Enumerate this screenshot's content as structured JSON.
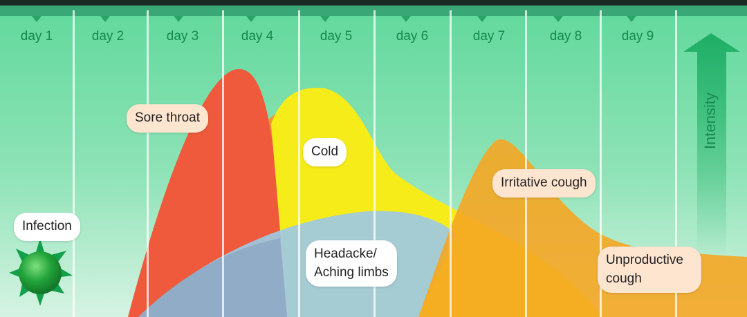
{
  "days": [
    "day 1",
    "day 2",
    "day 3",
    "day 4",
    "day 5",
    "day 6",
    "day 7",
    "day 8",
    "day 9"
  ],
  "axis_label": "Intensity",
  "labels": {
    "infection": "Infection",
    "sore_throat": "Sore throat",
    "cold": "Cold",
    "headache_line1": "Headacke/",
    "headache_line2": "Aching limbs",
    "irritative_cough": "Irritative cough",
    "unproductive_line1": "Unproductive",
    "unproductive_line2": "cough"
  },
  "colors": {
    "sore_throat": "#ef5a3c",
    "early_orange": "#f79436",
    "cold": "#f6ec1a",
    "headache": "#9ec9e3",
    "cough": "#f5a623",
    "background": "#5fd89b"
  }
}
